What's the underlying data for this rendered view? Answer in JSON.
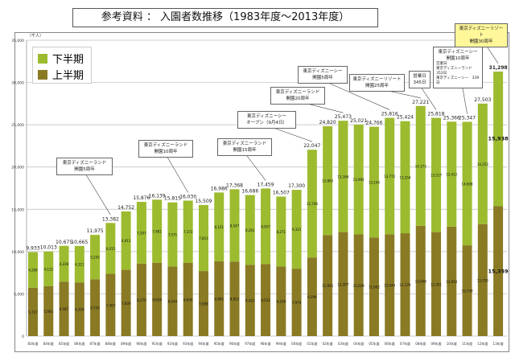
{
  "title": "参考資料 ： 入園者数推移（1983年度～2013年度）",
  "chart_data": {
    "type": "bar",
    "stacked": true,
    "title": "参考資料 ： 入園者数推移（1983年度～2013年度）",
    "ylabel": "（千人）",
    "xlabel": "",
    "ylim": [
      0,
      35000
    ],
    "yticks": [
      "0",
      "5,000",
      "10,000",
      "15,000",
      "20,000",
      "25,000",
      "30,000",
      "35,000"
    ],
    "ytick_values": [
      0,
      5000,
      10000,
      15000,
      20000,
      25000,
      30000,
      35000
    ],
    "grid": true,
    "legend_position": "top-left",
    "categories": [
      "83年度",
      "84年度",
      "85年度",
      "86年度",
      "87年度",
      "88年度",
      "89年度",
      "90年度",
      "91年度",
      "92年度",
      "93年度",
      "94年度",
      "95年度",
      "96年度",
      "97年度",
      "98年度",
      "99年度",
      "00年度",
      "01年度",
      "02年度",
      "03年度",
      "04年度",
      "05年度",
      "06年度",
      "07年度",
      "08年度",
      "09年度",
      "10年度",
      "11年度",
      "12年度",
      "13年度"
    ],
    "series": [
      {
        "name": "上半期",
        "color": "#8a7a24",
        "values": [
          5727,
          5901,
          6447,
          6354,
          6720,
          7367,
          7839,
          8579,
          8658,
          8244,
          8656,
          7696,
          8865,
          8822,
          8425,
          8532,
          8236,
          7979,
          9299,
          11955,
          12307,
          12029,
          11662,
          12044,
          12170,
          13048,
          12301,
          12954,
          10739,
          13250,
          15359
        ],
        "labels": [
          "5,727",
          "5,901",
          "6,447",
          "6,354",
          "6,720",
          "7,367",
          "7,839",
          "8,579",
          "8,658",
          "8,244",
          "8,656",
          "7,696",
          "8,865",
          "8,822",
          "8,425",
          "8,532",
          "8,236",
          "7,979",
          "9,299",
          "11,955",
          "12,307",
          "12,029",
          "11,662",
          "12,044",
          "12,170",
          "13,048",
          "12,301",
          "12,954",
          "10,739",
          "13,250",
          "15,359"
        ]
      },
      {
        "name": "下半期",
        "color": "#9dbb2f",
        "values": [
          4206,
          4112,
          4228,
          4311,
          5255,
          6015,
          6913,
          7297,
          7481,
          7571,
          7373,
          7813,
          8121,
          8547,
          8261,
          8927,
          8271,
          9321,
          12748,
          12865,
          13166,
          12992,
          13104,
          13772,
          13254,
          14173,
          13517,
          12412,
          14608,
          14253,
          15938
        ],
        "labels": [
          "4,206",
          "4,112",
          "4,228",
          "4,311",
          "5,255",
          "6,015",
          "6,913",
          "7,297",
          "7,481",
          "7,571",
          "7,373",
          "7,813",
          "8,121",
          "8,547",
          "8,261",
          "8,927",
          "8,271",
          "9,321",
          "12,748",
          "12,865",
          "13,166",
          "12,992",
          "13,104",
          "13,772",
          "13,254",
          "14,173",
          "13,517",
          "12,412",
          "14,608",
          "14,253",
          "15,938"
        ]
      }
    ],
    "totals": [
      "9,933",
      "10,013",
      "10,675",
      "10,665",
      "11,975",
      "13,382",
      "14,752",
      "15,876",
      "16,139",
      "15,815",
      "16,030",
      "15,509",
      "16,986",
      "17,368",
      "16,686",
      "17,459",
      "16,507",
      "17,300",
      "22,047",
      "24,820",
      "25,473",
      "25,021",
      "24,766",
      "25,816",
      "25,424",
      "27,221",
      "25,818",
      "25,366",
      "25,347",
      "27,503",
      "31,298"
    ],
    "annotations": [
      {
        "year": "88年度",
        "lines": [
          "東京ディズニーランド",
          "開園5周年"
        ]
      },
      {
        "year": "93年度",
        "lines": [
          "東京ディズニーランド",
          "開園10周年"
        ]
      },
      {
        "year": "98年度",
        "lines": [
          "東京ディズニーランド",
          "開園15周年"
        ]
      },
      {
        "year": "01年度",
        "lines": [
          "東京ディズニーシー",
          "オープン（9月4日）"
        ]
      },
      {
        "year": "03年度",
        "lines": [
          "東京ディズニーランド",
          "開園20周年"
        ]
      },
      {
        "year": "06年度",
        "lines": [
          "東京ディズニーシー",
          "開園5周年"
        ]
      },
      {
        "year": "08年度",
        "lines": [
          "東京ディズニーリゾート",
          "開園25周年"
        ]
      },
      {
        "year": "08年度",
        "lines": [
          "営業日",
          "345日"
        ]
      },
      {
        "year": "11年度",
        "lines": [
          "東京ディズニーシー",
          "開園10周年"
        ],
        "details": [
          "営業日",
          "東京ディズニーランド　352日",
          "東京ディズニーシー　339日"
        ]
      },
      {
        "year": "13年度",
        "lines": [
          "東京ディズニーリゾート",
          "開園30周年"
        ],
        "highlight": "#fff799"
      }
    ]
  }
}
